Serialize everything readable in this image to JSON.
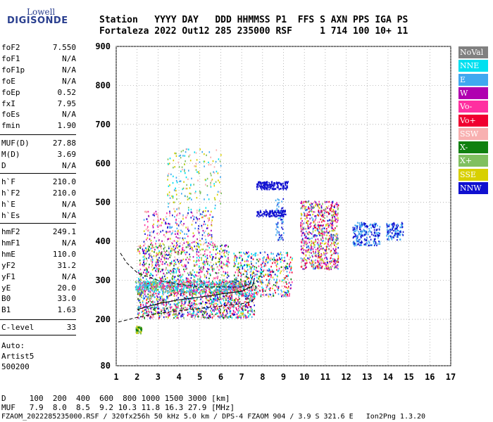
{
  "logo": {
    "line1": "Lowell",
    "line2": "DIGISONDE"
  },
  "header": {
    "line1": "Station   YYYY DAY   DDD HHMMSS P1  FFS S AXN PPS IGA PS",
    "line2": "Fortaleza 2022 Out12 285 235000 RSF     1 714 100 10+ 11"
  },
  "params_group1": [
    {
      "name": "foF2",
      "value": "7.550"
    },
    {
      "name": "foF1",
      "value": "N/A"
    },
    {
      "name": "foF1p",
      "value": "N/A"
    },
    {
      "name": "foE",
      "value": "N/A"
    },
    {
      "name": "foEp",
      "value": "0.52"
    },
    {
      "name": "fxI",
      "value": "7.95"
    },
    {
      "name": "foEs",
      "value": "N/A"
    },
    {
      "name": "fmin",
      "value": "1.90"
    }
  ],
  "params_group2": [
    {
      "name": "MUF(D)",
      "value": "27.88"
    },
    {
      "name": "M(D)",
      "value": "3.69"
    },
    {
      "name": "D",
      "value": "N/A"
    }
  ],
  "params_group3": [
    {
      "name": "h`F",
      "value": "210.0"
    },
    {
      "name": "h`F2",
      "value": "210.0"
    },
    {
      "name": "h`E",
      "value": "N/A"
    },
    {
      "name": "h`Es",
      "value": "N/A"
    }
  ],
  "params_group4": [
    {
      "name": "hmF2",
      "value": "249.1"
    },
    {
      "name": "hmF1",
      "value": "N/A"
    },
    {
      "name": "hmE",
      "value": "110.0"
    },
    {
      "name": "yF2",
      "value": "31.2"
    },
    {
      "name": "yF1",
      "value": "N/A"
    },
    {
      "name": "yE",
      "value": "20.0"
    },
    {
      "name": "B0",
      "value": "33.0"
    },
    {
      "name": "B1",
      "value": "1.63"
    }
  ],
  "params_group5": [
    {
      "name": "C-level",
      "value": "33"
    }
  ],
  "auto": {
    "line1": "Auto:",
    "line2": "Artist5",
    "line3": "500200"
  },
  "legend": [
    {
      "label": "NoVal",
      "color": "#808080"
    },
    {
      "label": "NNE",
      "color": "#00e0f0"
    },
    {
      "label": "E",
      "color": "#40a8f0"
    },
    {
      "label": "W",
      "color": "#b000b0"
    },
    {
      "label": "Vo-",
      "color": "#ff30a0"
    },
    {
      "label": "Vo+",
      "color": "#f00030"
    },
    {
      "label": "SSW",
      "color": "#f8b0b0"
    },
    {
      "label": "X-",
      "color": "#108010"
    },
    {
      "label": "X+",
      "color": "#80c060"
    },
    {
      "label": "SSE",
      "color": "#d8d000"
    },
    {
      "label": "NNW",
      "color": "#1010d0"
    }
  ],
  "chart_data": {
    "type": "scatter",
    "xlim": [
      1,
      17
    ],
    "ylim": [
      80,
      900
    ],
    "x_ticks": [
      "1",
      "2",
      "3",
      "4",
      "5",
      "6",
      "7",
      "8",
      "9",
      "10",
      "11",
      "12",
      "13",
      "14",
      "15",
      "16",
      "17"
    ],
    "y_ticks": [
      "80",
      "200",
      "300",
      "400",
      "500",
      "600",
      "700",
      "800",
      "900"
    ],
    "grid": true,
    "trace_upper": [
      [
        1.2,
        370
      ],
      [
        1.5,
        345
      ],
      [
        2.0,
        320
      ],
      [
        3.0,
        300
      ],
      [
        4.0,
        290
      ],
      [
        5.0,
        283
      ],
      [
        6.0,
        283
      ],
      [
        7.0,
        283
      ],
      [
        7.4,
        292
      ],
      [
        7.6,
        320
      ]
    ],
    "trace_lower": [
      [
        1.1,
        193
      ],
      [
        2.0,
        205
      ],
      [
        3.0,
        215
      ],
      [
        4.0,
        222
      ],
      [
        5.0,
        228
      ],
      [
        6.0,
        234
      ],
      [
        7.0,
        240
      ],
      [
        7.5,
        245
      ],
      [
        7.6,
        255
      ]
    ],
    "trace_profile": [
      [
        2.0,
        225
      ],
      [
        3.0,
        240
      ],
      [
        4.0,
        250
      ],
      [
        5.0,
        257
      ],
      [
        6.0,
        265
      ],
      [
        7.0,
        272
      ],
      [
        7.5,
        285
      ],
      [
        7.6,
        300
      ]
    ]
  },
  "footer": {
    "d_line": "D     100  200  400  600  800 1000 1500 3000 [km]",
    "muf_line": "MUF   7.9  8.0  8.5  9.2 10.3 11.8 16.3 27.9 [MHz]",
    "info_line": "FZAOM_2022285235000.RSF / 320fx256h 50 kHz 5.0 km / DPS-4 FZAOM 904 / 3.9 S 321.6 E   Ion2Png 1.3.20"
  }
}
